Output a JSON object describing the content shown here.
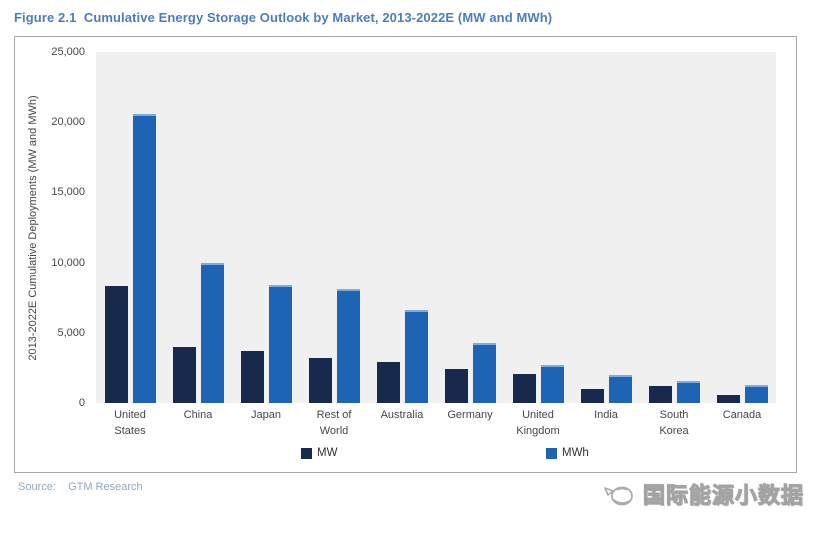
{
  "title": "Figure 2.1  Cumulative Energy Storage Outlook by Market, 2013-2022E (MW and MWh)",
  "chart_data": {
    "type": "bar",
    "title": "Cumulative Energy Storage Outlook by Market, 2013-2022E (MW and MWh)",
    "xlabel": "",
    "ylabel": "2013-2022E Cumulative Deployments (MW and MWh)",
    "ylim": [
      0,
      25000
    ],
    "yticks": [
      0,
      5000,
      10000,
      15000,
      20000,
      25000
    ],
    "ytick_labels": [
      "0",
      "5,000",
      "10,000",
      "15,000",
      "20,000",
      "25,000"
    ],
    "grid": false,
    "legend_position": "bottom",
    "categories": [
      "United States",
      "China",
      "Japan",
      "Rest of World",
      "Australia",
      "Germany",
      "United Kingdom",
      "India",
      "South Korea",
      "Canada"
    ],
    "series": [
      {
        "name": "MW",
        "color": "#172a4d",
        "values": [
          8300,
          4000,
          3700,
          3200,
          2900,
          2400,
          2100,
          1000,
          1200,
          600
        ]
      },
      {
        "name": "MWh",
        "color": "#1d64b5",
        "values": [
          20600,
          10000,
          8400,
          8100,
          6600,
          4300,
          2700,
          2000,
          1600,
          1300
        ]
      }
    ]
  },
  "source": {
    "label": "Source:",
    "value": "GTM Research"
  },
  "watermark": {
    "text": "国际能源小数据"
  },
  "colors": {
    "title": "#4a7ebd",
    "mw_bar": "#172a4d",
    "mwh_bar": "#1d64b5",
    "plot_background": "#f1f0f0",
    "frame_border": "#a6a6a6",
    "source_text": "#93a9bd"
  }
}
